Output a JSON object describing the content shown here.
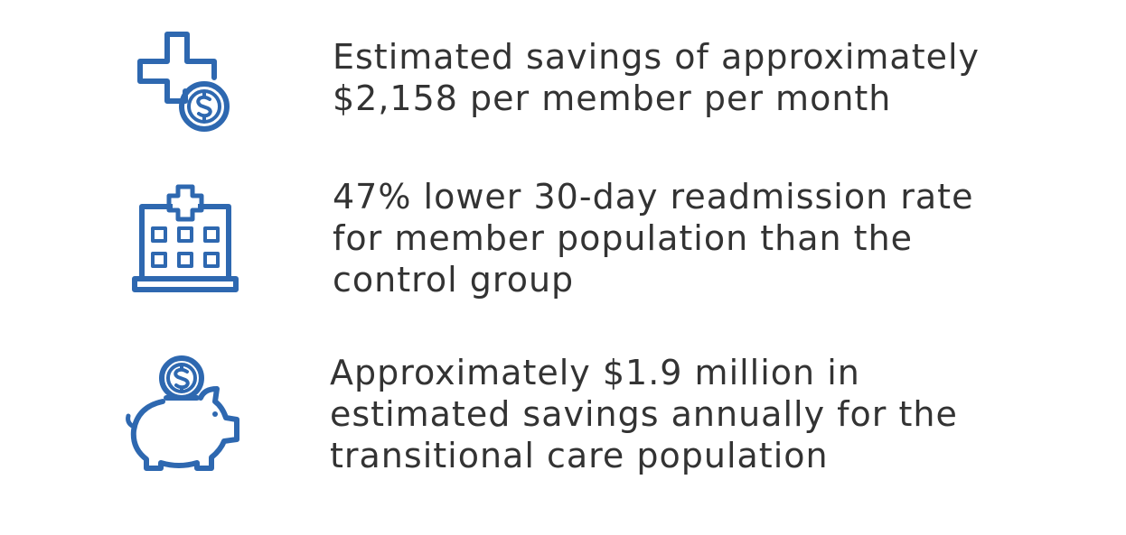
{
  "accent_color": "#2e68b0",
  "text_color": "#333333",
  "stats": [
    {
      "icon": "medical-cross-dollar-icon",
      "lines": [
        "Estimated savings of approximately",
        "$2,158 per member per month"
      ]
    },
    {
      "icon": "hospital-building-icon",
      "lines": [
        "47% lower 30-day readmission rate",
        "for member population than the",
        "control group"
      ]
    },
    {
      "icon": "piggy-bank-dollar-icon",
      "lines": [
        "Approximately $1.9 million in",
        "estimated savings annually for the",
        "transitional care population"
      ]
    }
  ]
}
